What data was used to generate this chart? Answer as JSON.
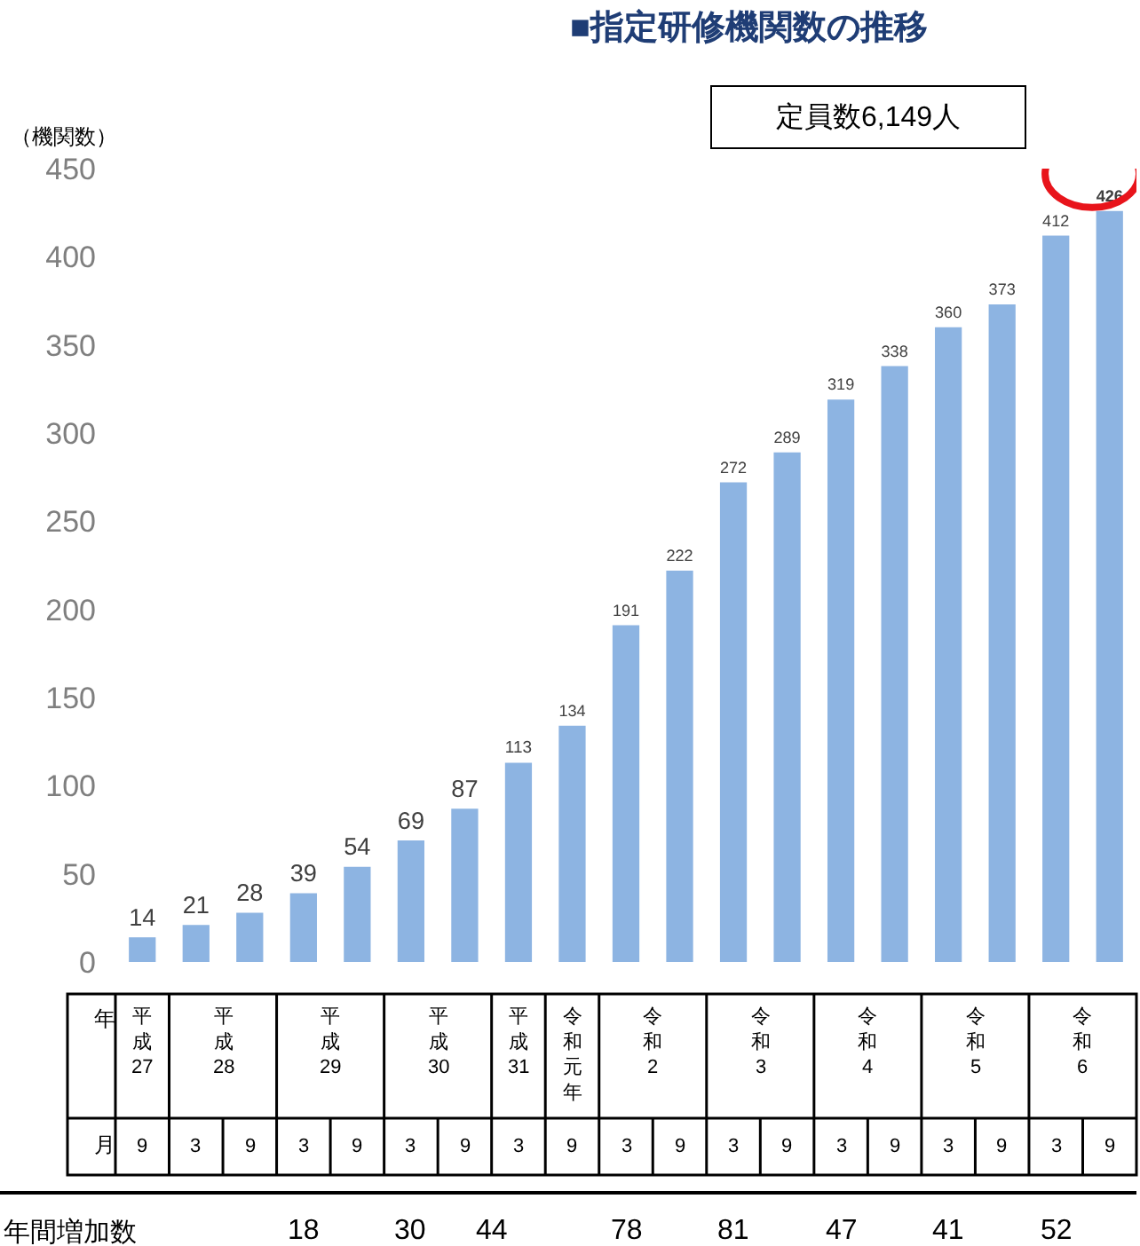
{
  "chart_data": {
    "type": "bar",
    "title": "■指定研修機関数の推移",
    "ylabel": "（機関数）",
    "categories": [
      "9",
      "3",
      "9",
      "3",
      "9",
      "3",
      "9",
      "3",
      "9",
      "3",
      "9",
      "3",
      "9",
      "3",
      "9",
      "3",
      "9",
      "3",
      "9"
    ],
    "values": [
      14,
      21,
      28,
      39,
      54,
      69,
      87,
      113,
      134,
      191,
      222,
      272,
      289,
      319,
      338,
      360,
      373,
      412,
      426
    ],
    "color": "#8db4e2",
    "ylim": [
      0,
      450
    ],
    "yticks": [
      0,
      50,
      100,
      150,
      200,
      250,
      300,
      350,
      400,
      450
    ],
    "grid": false,
    "data_labels": true,
    "annotations": [
      "定員数6,149人",
      "年",
      "月",
      "年間増加数",
      "平成27",
      "平成28",
      "平成29",
      "平成30",
      "平成31",
      "令和元年",
      "令和2",
      "令和3",
      "令和4",
      "令和5",
      "令和6",
      "18",
      "30",
      "44",
      "78",
      "81",
      "47",
      "41",
      "52"
    ]
  }
}
